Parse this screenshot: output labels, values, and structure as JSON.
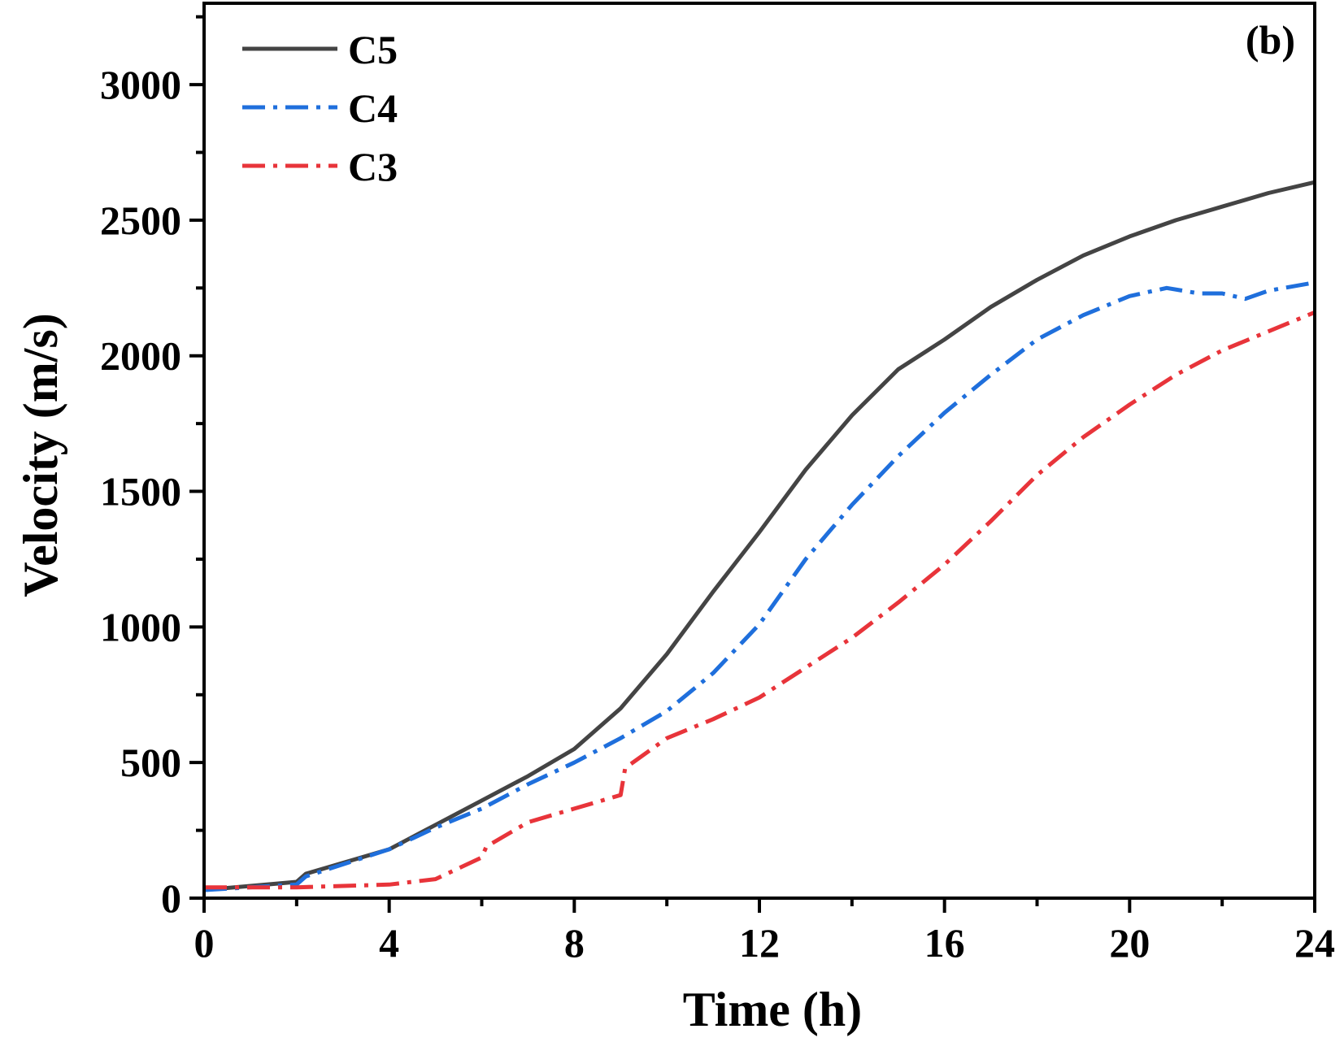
{
  "chart_data": {
    "type": "line",
    "panel_label": "(b)",
    "xlabel": "Time (h)",
    "ylabel": "Velocity (m/s)",
    "xlim": [
      0,
      24
    ],
    "ylim": [
      0,
      3300
    ],
    "xticks": [
      0,
      4,
      8,
      12,
      16,
      20,
      24
    ],
    "yticks": [
      0,
      500,
      1000,
      1500,
      2000,
      2500,
      3000
    ],
    "grid": false,
    "legend_position": "top-left",
    "series": [
      {
        "name": "C5",
        "color": "#444444",
        "style": "solid",
        "x": [
          0,
          2,
          2.2,
          4,
          5,
          6,
          7,
          8,
          9,
          10,
          11,
          12,
          13,
          14,
          15,
          16,
          17,
          18,
          19,
          20,
          21,
          22,
          23,
          24
        ],
        "y": [
          30,
          60,
          90,
          180,
          270,
          360,
          450,
          550,
          700,
          900,
          1130,
          1350,
          1580,
          1780,
          1950,
          2060,
          2180,
          2280,
          2370,
          2440,
          2500,
          2550,
          2600,
          2640
        ]
      },
      {
        "name": "C4",
        "color": "#1f6fdc",
        "style": "dash-dot",
        "x": [
          0,
          2,
          2.2,
          4,
          5,
          6,
          7,
          8,
          9,
          10,
          11,
          12,
          13,
          14,
          15,
          16,
          17,
          18,
          19,
          20,
          20.8,
          21.5,
          22,
          22.5,
          23,
          24
        ],
        "y": [
          30,
          50,
          80,
          180,
          260,
          330,
          420,
          500,
          590,
          690,
          830,
          1010,
          1250,
          1450,
          1630,
          1790,
          1930,
          2060,
          2150,
          2220,
          2250,
          2230,
          2230,
          2210,
          2240,
          2270
        ]
      },
      {
        "name": "C3",
        "color": "#e8343a",
        "style": "dash-dot",
        "x": [
          0,
          2,
          4,
          5,
          5.5,
          6,
          6.1,
          7,
          8,
          9,
          9.1,
          10,
          11,
          12,
          13,
          14,
          15,
          16,
          17,
          18,
          19,
          20,
          21,
          22,
          23,
          24
        ],
        "y": [
          40,
          40,
          50,
          70,
          110,
          150,
          190,
          280,
          330,
          380,
          480,
          590,
          660,
          740,
          850,
          960,
          1090,
          1230,
          1390,
          1560,
          1700,
          1820,
          1930,
          2020,
          2090,
          2160
        ]
      }
    ]
  }
}
